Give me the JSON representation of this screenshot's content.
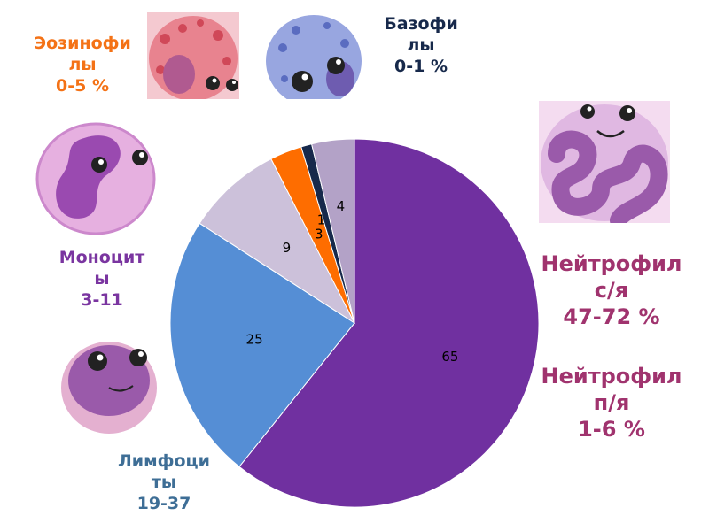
{
  "labels": {
    "eosinophils": {
      "line1": "Эозинофи",
      "line2": "лы",
      "range": "0-5 %",
      "color": "#f47216"
    },
    "basophils": {
      "line1": "Базофи",
      "line2": "лы",
      "range": "0-1 %",
      "color": "#17294b"
    },
    "monocytes": {
      "line1": "Моноцит",
      "line2": "ы",
      "range": "3-11",
      "color": "#7a35a0"
    },
    "lymphocytes": {
      "line1": "Лимфоци",
      "line2": "ты",
      "range": "19-37",
      "color": "#3e6e96"
    },
    "neutrophils_seg": {
      "line1": "Нейтрофил",
      "line2": "с/я",
      "range": "47-72 %",
      "color": "#a0336e"
    },
    "neutrophils_band": {
      "line1": "Нейтрофил",
      "line2": "п/я",
      "range": "1-6 %",
      "color": "#a0336e"
    }
  },
  "cells": {
    "eosinophil": {
      "icon": "eosinophil-cell-icon",
      "color": "#e05a6a"
    },
    "basophil": {
      "icon": "basophil-cell-icon",
      "color": "#7a8fd6"
    },
    "monocyte": {
      "icon": "monocyte-cell-icon",
      "color": "#b06ac0"
    },
    "lymphocyte": {
      "icon": "lymphocyte-cell-icon",
      "color": "#9a5aaa"
    },
    "neutrophil": {
      "icon": "neutrophil-cell-icon",
      "color": "#c890d0"
    }
  },
  "chart_data": {
    "type": "pie",
    "start_angle_deg": 0,
    "direction": "clockwise",
    "slices": [
      {
        "label": "65",
        "value": 65,
        "color": "#7030a0"
      },
      {
        "label": "25",
        "value": 25,
        "color": "#558ed5"
      },
      {
        "label": "9",
        "value": 9,
        "color": "#ccc1da"
      },
      {
        "label": "3",
        "value": 3,
        "color": "#fe6d00"
      },
      {
        "label": "1",
        "value": 1,
        "color": "#17294b"
      },
      {
        "label": "4",
        "value": 4,
        "color": "#b3a2c7"
      }
    ]
  }
}
